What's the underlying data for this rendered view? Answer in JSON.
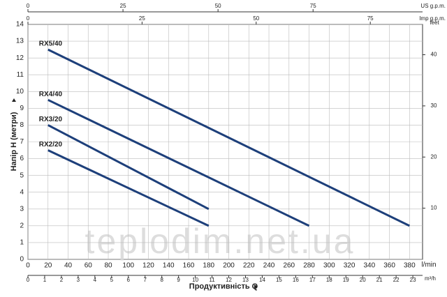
{
  "chart_data": {
    "type": "line",
    "x_label": "Продуктивність Q",
    "y_label": "Напір H (метри)",
    "x_unit": "l/min",
    "xlim": [
      0,
      393
    ],
    "xticks": [
      0,
      20,
      40,
      60,
      80,
      100,
      120,
      140,
      160,
      180,
      200,
      220,
      240,
      260,
      280,
      300,
      320,
      340,
      360,
      380
    ],
    "ylim": [
      0,
      14
    ],
    "yticks": [
      0,
      1,
      2,
      3,
      4,
      5,
      6,
      7,
      8,
      9,
      10,
      11,
      12,
      13,
      14
    ],
    "y2_label": "feet",
    "y2lim": [
      0,
      45.93
    ],
    "y2ticks": [
      10,
      20,
      30,
      40
    ],
    "m3h_axis": {
      "label": "m³/h",
      "lim": [
        0,
        23.58
      ],
      "ticks": [
        0,
        1,
        2,
        3,
        4,
        5,
        6,
        7,
        8,
        9,
        10,
        11,
        12,
        13,
        14,
        15,
        16,
        17,
        18,
        19,
        20,
        21,
        22,
        23
      ]
    },
    "us_gpm_axis": {
      "label": "US g.p.m.",
      "lim": [
        0,
        103.8
      ],
      "ticks": [
        0,
        25,
        50,
        75
      ]
    },
    "imp_gpm_axis": {
      "label": "Imp g.p.m.",
      "lim": [
        0,
        86.45
      ],
      "ticks": [
        0,
        25,
        50,
        75
      ]
    },
    "grid": true,
    "series": [
      {
        "name": "RX5/40",
        "color": "#1d3f7a",
        "x": [
          20,
          380
        ],
        "values": [
          12.5,
          2
        ]
      },
      {
        "name": "RX4/40",
        "color": "#1d3f7a",
        "x": [
          20,
          280
        ],
        "values": [
          9.5,
          2
        ]
      },
      {
        "name": "RX3/20",
        "color": "#1d3f7a",
        "x": [
          20,
          180
        ],
        "values": [
          8,
          3
        ]
      },
      {
        "name": "RX2/20",
        "color": "#1d3f7a",
        "x": [
          20,
          180
        ],
        "values": [
          6.5,
          2
        ]
      }
    ],
    "watermark": "teplodim.net.ua"
  }
}
